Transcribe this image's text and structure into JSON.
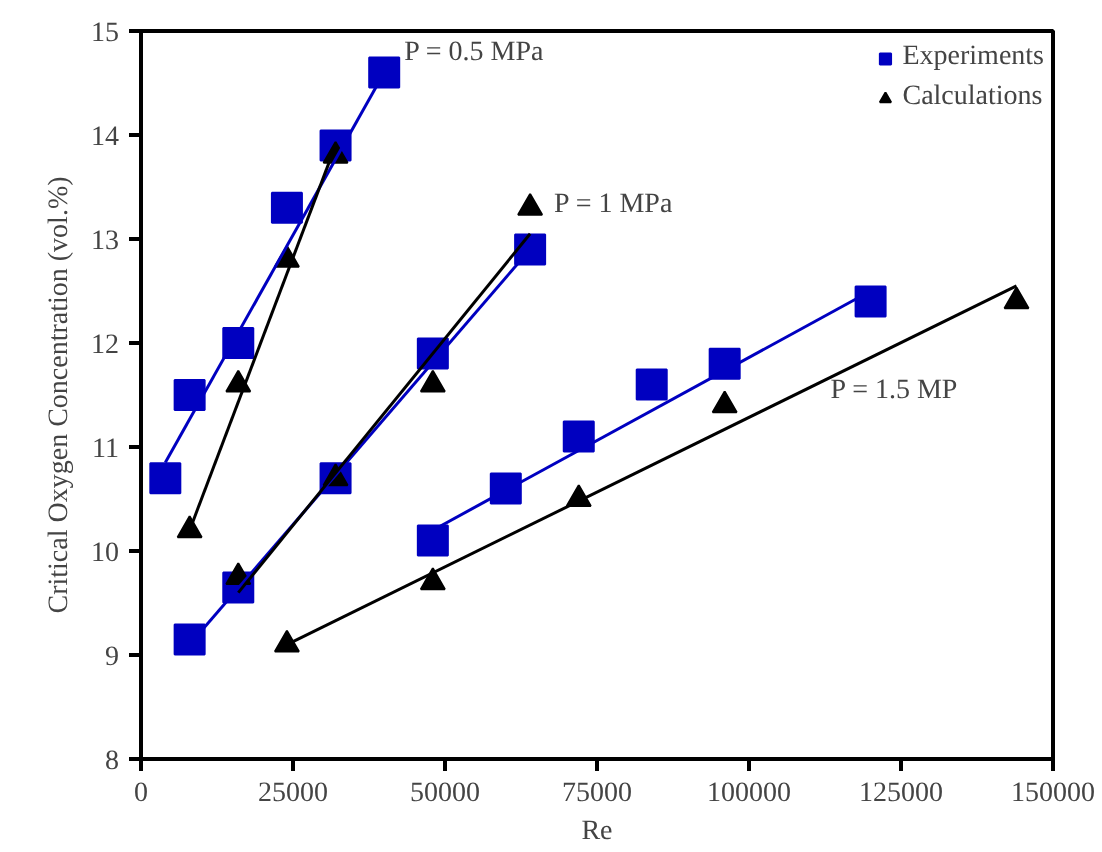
{
  "chart_data": {
    "type": "scatter",
    "xlabel": "Re",
    "ylabel": "Critical Oxygen Concentration (vol.%)",
    "xlim": [
      0,
      150000
    ],
    "ylim": [
      8,
      15
    ],
    "xticks": [
      0,
      25000,
      50000,
      75000,
      100000,
      125000,
      150000
    ],
    "yticks": [
      8,
      9,
      10,
      11,
      12,
      13,
      14,
      15
    ],
    "grid": false,
    "legend": "top right",
    "series": [
      {
        "name": "Experiments",
        "marker": "square",
        "color": "#0000c0",
        "x": [
          4000,
          8000,
          16000,
          24000,
          32000,
          40000,
          8000,
          16000,
          32000,
          48000,
          64000,
          48000,
          60000,
          72000,
          84000,
          96000,
          120000
        ],
        "values": [
          10.7,
          11.5,
          12.0,
          13.3,
          13.9,
          14.6,
          9.15,
          9.65,
          10.7,
          11.9,
          12.9,
          10.1,
          10.6,
          11.1,
          11.6,
          11.8,
          12.4
        ]
      },
      {
        "name": "Calculations",
        "marker": "triangle",
        "color": "#000000",
        "x": [
          8000,
          16000,
          24000,
          32000,
          16000,
          32000,
          48000,
          64000,
          24000,
          48000,
          72000,
          96000,
          144000
        ],
        "values": [
          10.2,
          11.6,
          12.8,
          13.8,
          9.75,
          10.7,
          11.6,
          13.3,
          9.1,
          9.7,
          10.5,
          11.4,
          12.4
        ]
      },
      {
        "type": "line",
        "color": "#0000c0",
        "x": [
          4000,
          40000
        ],
        "values": [
          10.85,
          14.6
        ]
      },
      {
        "type": "line",
        "color": "#000000",
        "x": [
          8000,
          32000
        ],
        "values": [
          10.2,
          13.9
        ]
      },
      {
        "type": "line",
        "color": "#0000c0",
        "x": [
          8000,
          64000
        ],
        "values": [
          9.1,
          12.9
        ]
      },
      {
        "type": "line",
        "color": "#000000",
        "x": [
          16000,
          64000
        ],
        "values": [
          9.6,
          13.05
        ]
      },
      {
        "type": "line",
        "color": "#0000c0",
        "x": [
          48000,
          120000
        ],
        "values": [
          10.2,
          12.5
        ]
      },
      {
        "type": "line",
        "color": "#000000",
        "x": [
          24000,
          144000
        ],
        "values": [
          9.1,
          12.55
        ]
      }
    ],
    "annotations": [
      "P = 0.5 MPa",
      "P = 1 MPa",
      "P = 1.5 MP"
    ]
  }
}
